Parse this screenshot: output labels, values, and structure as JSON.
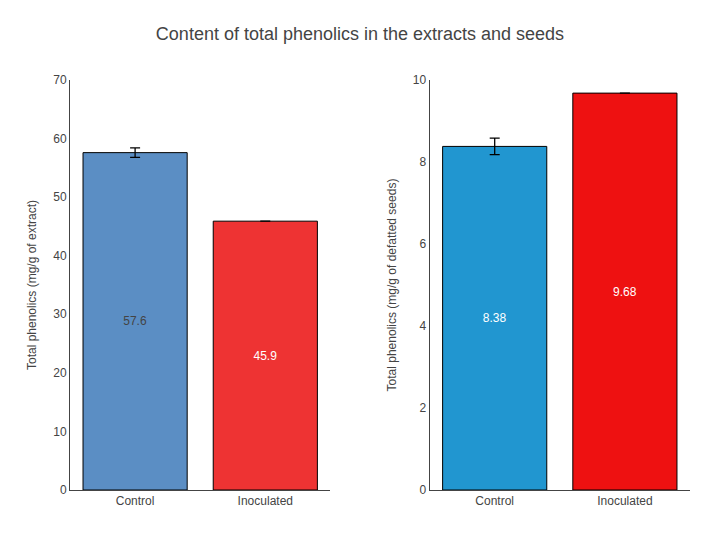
{
  "title": "Content of total phenolics in the extracts and seeds",
  "chart_data": [
    {
      "type": "bar",
      "categories": [
        "Control",
        "Inoculated"
      ],
      "values": [
        57.6,
        45.9
      ],
      "errors": [
        0.8,
        0.0
      ],
      "colors": [
        "#5b8ec4",
        "#ee3333"
      ],
      "ylabel": "Total phenolics (mg/g of extract)",
      "ylim": [
        0,
        70
      ],
      "yticks": [
        0,
        10,
        20,
        30,
        40,
        50,
        60,
        70
      ],
      "data_labels": true,
      "grid": false
    },
    {
      "type": "bar",
      "categories": [
        "Control",
        "Inoculated"
      ],
      "values": [
        8.38,
        9.68
      ],
      "errors": [
        0.2,
        0.0
      ],
      "colors": [
        "#2196d0",
        "#ee1111"
      ],
      "ylabel": "Total phenolics (mg/g of defatted seeds)",
      "ylim": [
        0,
        10
      ],
      "yticks": [
        0,
        2,
        4,
        6,
        8,
        10
      ],
      "data_labels": true,
      "grid": false
    }
  ]
}
